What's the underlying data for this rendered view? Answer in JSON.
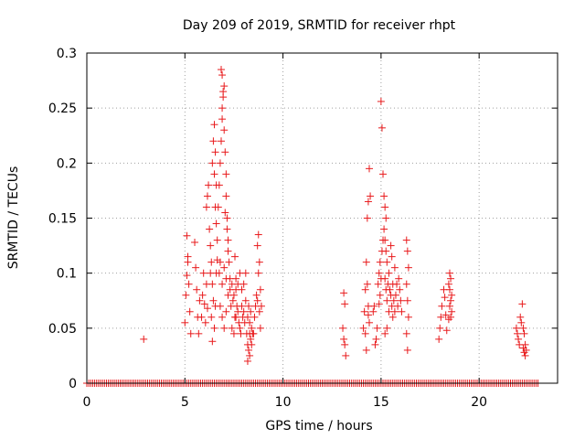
{
  "chart_data": {
    "type": "scatter",
    "title": "Day 209 of 2019, SRMTID for receiver rhpt",
    "xlabel": "GPS time / hours",
    "ylabel": "SRMTID / TECUs",
    "xlim": [
      0,
      24
    ],
    "ylim": [
      0,
      0.3
    ],
    "x_ticks": [
      0,
      5,
      10,
      15,
      20
    ],
    "x_tick_labels": [
      "0",
      "5",
      "10",
      "15",
      "20"
    ],
    "y_ticks": [
      0,
      0.05,
      0.1,
      0.15,
      0.2,
      0.25,
      0.3
    ],
    "y_tick_labels": [
      "0",
      "0.05",
      "0.1",
      "0.15",
      "0.2",
      "0.25",
      "0.3"
    ],
    "grid": true,
    "marker": "plus",
    "color": "#e8191b",
    "series": [
      {
        "name": "SRMTID",
        "zero_baseline_x_range": [
          0,
          23
        ],
        "points": [
          [
            2.9,
            0.04
          ],
          [
            5.0,
            0.055
          ],
          [
            5.05,
            0.08
          ],
          [
            5.1,
            0.134
          ],
          [
            5.15,
            0.11
          ],
          [
            5.2,
            0.09
          ],
          [
            5.25,
            0.065
          ],
          [
            5.3,
            0.045
          ],
          [
            5.15,
            0.115
          ],
          [
            5.1,
            0.098
          ],
          [
            5.5,
            0.128
          ],
          [
            5.55,
            0.105
          ],
          [
            5.6,
            0.085
          ],
          [
            5.65,
            0.06
          ],
          [
            5.7,
            0.045
          ],
          [
            5.75,
            0.075
          ],
          [
            5.85,
            0.06
          ],
          [
            5.9,
            0.08
          ],
          [
            5.95,
            0.1
          ],
          [
            6.0,
            0.072
          ],
          [
            6.05,
            0.055
          ],
          [
            6.1,
            0.09
          ],
          [
            6.15,
            0.068
          ],
          [
            6.1,
            0.16
          ],
          [
            6.15,
            0.17
          ],
          [
            6.2,
            0.18
          ],
          [
            6.25,
            0.14
          ],
          [
            6.3,
            0.125
          ],
          [
            6.35,
            0.11
          ],
          [
            6.3,
            0.1
          ],
          [
            6.4,
            0.09
          ],
          [
            6.45,
            0.075
          ],
          [
            6.4,
            0.2
          ],
          [
            6.45,
            0.22
          ],
          [
            6.5,
            0.235
          ],
          [
            6.55,
            0.21
          ],
          [
            6.5,
            0.19
          ],
          [
            6.6,
            0.18
          ],
          [
            6.55,
            0.16
          ],
          [
            6.6,
            0.145
          ],
          [
            6.65,
            0.13
          ],
          [
            6.35,
            0.06
          ],
          [
            6.4,
            0.038
          ],
          [
            6.5,
            0.05
          ],
          [
            6.55,
            0.07
          ],
          [
            6.6,
            0.1
          ],
          [
            6.65,
            0.112
          ],
          [
            6.7,
            0.16
          ],
          [
            6.75,
            0.18
          ],
          [
            6.8,
            0.2
          ],
          [
            6.85,
            0.22
          ],
          [
            6.9,
            0.24
          ],
          [
            6.95,
            0.26
          ],
          [
            6.85,
            0.285
          ],
          [
            6.9,
            0.28
          ],
          [
            7.0,
            0.27
          ],
          [
            6.95,
            0.265
          ],
          [
            6.9,
            0.25
          ],
          [
            7.0,
            0.23
          ],
          [
            7.05,
            0.21
          ],
          [
            7.1,
            0.19
          ],
          [
            7.1,
            0.17
          ],
          [
            7.15,
            0.15
          ],
          [
            7.2,
            0.13
          ],
          [
            7.2,
            0.12
          ],
          [
            7.25,
            0.11
          ],
          [
            7.3,
            0.095
          ],
          [
            7.15,
            0.14
          ],
          [
            7.05,
            0.155
          ],
          [
            6.75,
            0.1
          ],
          [
            6.8,
            0.11
          ],
          [
            6.9,
            0.09
          ],
          [
            7.0,
            0.105
          ],
          [
            7.1,
            0.095
          ],
          [
            6.8,
            0.07
          ],
          [
            6.9,
            0.06
          ],
          [
            7.0,
            0.05
          ],
          [
            7.1,
            0.065
          ],
          [
            7.2,
            0.08
          ],
          [
            7.3,
            0.085
          ],
          [
            7.35,
            0.07
          ],
          [
            7.4,
            0.09
          ],
          [
            7.45,
            0.075
          ],
          [
            7.5,
            0.08
          ],
          [
            7.55,
            0.06
          ],
          [
            7.6,
            0.085
          ],
          [
            7.65,
            0.07
          ],
          [
            7.7,
            0.065
          ],
          [
            7.75,
            0.055
          ],
          [
            7.4,
            0.05
          ],
          [
            7.5,
            0.045
          ],
          [
            7.6,
            0.06
          ],
          [
            7.8,
            0.05
          ],
          [
            7.85,
            0.045
          ],
          [
            7.9,
            0.07
          ],
          [
            7.95,
            0.06
          ],
          [
            8.0,
            0.065
          ],
          [
            8.05,
            0.055
          ],
          [
            8.1,
            0.075
          ],
          [
            7.6,
            0.095
          ],
          [
            7.7,
            0.09
          ],
          [
            7.8,
            0.1
          ],
          [
            8.0,
            0.09
          ],
          [
            8.1,
            0.1
          ],
          [
            7.9,
            0.085
          ],
          [
            7.55,
            0.115
          ],
          [
            8.15,
            0.045
          ],
          [
            8.2,
            0.035
          ],
          [
            8.25,
            0.03
          ],
          [
            8.3,
            0.025
          ],
          [
            8.35,
            0.04
          ],
          [
            8.4,
            0.05
          ],
          [
            8.2,
            0.06
          ],
          [
            8.25,
            0.07
          ],
          [
            8.3,
            0.055
          ],
          [
            8.35,
            0.065
          ],
          [
            8.4,
            0.035
          ],
          [
            8.45,
            0.045
          ],
          [
            8.2,
            0.02
          ],
          [
            8.3,
            0.045
          ],
          [
            8.5,
            0.045
          ],
          [
            8.55,
            0.06
          ],
          [
            8.6,
            0.07
          ],
          [
            8.65,
            0.08
          ],
          [
            8.7,
            0.075
          ],
          [
            8.8,
            0.065
          ],
          [
            8.85,
            0.05
          ],
          [
            8.75,
            0.1
          ],
          [
            8.7,
            0.125
          ],
          [
            8.75,
            0.135
          ],
          [
            8.8,
            0.11
          ],
          [
            8.85,
            0.085
          ],
          [
            8.9,
            0.07
          ],
          [
            13.1,
            0.082
          ],
          [
            13.15,
            0.072
          ],
          [
            13.05,
            0.05
          ],
          [
            13.1,
            0.04
          ],
          [
            13.15,
            0.035
          ],
          [
            13.2,
            0.025
          ],
          [
            14.1,
            0.05
          ],
          [
            14.15,
            0.065
          ],
          [
            14.2,
            0.085
          ],
          [
            14.25,
            0.11
          ],
          [
            14.3,
            0.15
          ],
          [
            14.35,
            0.165
          ],
          [
            14.4,
            0.195
          ],
          [
            14.45,
            0.17
          ],
          [
            14.3,
            0.09
          ],
          [
            14.35,
            0.07
          ],
          [
            14.4,
            0.055
          ],
          [
            14.2,
            0.045
          ],
          [
            14.25,
            0.03
          ],
          [
            14.35,
            0.062
          ],
          [
            14.6,
            0.065
          ],
          [
            14.65,
            0.07
          ],
          [
            14.7,
            0.035
          ],
          [
            14.75,
            0.04
          ],
          [
            14.8,
            0.05
          ],
          [
            14.85,
            0.09
          ],
          [
            14.9,
            0.1
          ],
          [
            14.95,
            0.11
          ],
          [
            15.0,
            0.095
          ],
          [
            15.05,
            0.12
          ],
          [
            14.95,
            0.08
          ],
          [
            14.9,
            0.072
          ],
          [
            15.0,
            0.256
          ],
          [
            15.05,
            0.232
          ],
          [
            15.1,
            0.19
          ],
          [
            15.15,
            0.17
          ],
          [
            15.2,
            0.16
          ],
          [
            15.25,
            0.15
          ],
          [
            15.15,
            0.14
          ],
          [
            15.2,
            0.13
          ],
          [
            15.25,
            0.12
          ],
          [
            15.3,
            0.11
          ],
          [
            15.1,
            0.13
          ],
          [
            15.2,
            0.095
          ],
          [
            15.25,
            0.085
          ],
          [
            15.3,
            0.075
          ],
          [
            15.35,
            0.09
          ],
          [
            15.4,
            0.1
          ],
          [
            15.45,
            0.085
          ],
          [
            15.5,
            0.08
          ],
          [
            15.55,
            0.07
          ],
          [
            15.6,
            0.06
          ],
          [
            15.4,
            0.065
          ],
          [
            15.3,
            0.05
          ],
          [
            15.2,
            0.045
          ],
          [
            15.6,
            0.09
          ],
          [
            15.65,
            0.075
          ],
          [
            15.7,
            0.065
          ],
          [
            15.75,
            0.08
          ],
          [
            15.8,
            0.09
          ],
          [
            15.85,
            0.07
          ],
          [
            15.9,
            0.095
          ],
          [
            15.95,
            0.085
          ],
          [
            16.0,
            0.075
          ],
          [
            16.05,
            0.065
          ],
          [
            15.55,
            0.115
          ],
          [
            15.5,
            0.125
          ],
          [
            15.7,
            0.105
          ],
          [
            16.3,
            0.13
          ],
          [
            16.35,
            0.12
          ],
          [
            16.4,
            0.105
          ],
          [
            16.3,
            0.09
          ],
          [
            16.35,
            0.075
          ],
          [
            16.4,
            0.06
          ],
          [
            16.3,
            0.045
          ],
          [
            16.35,
            0.03
          ],
          [
            17.95,
            0.04
          ],
          [
            18.0,
            0.05
          ],
          [
            18.05,
            0.06
          ],
          [
            18.1,
            0.07
          ],
          [
            18.2,
            0.085
          ],
          [
            18.25,
            0.078
          ],
          [
            18.3,
            0.062
          ],
          [
            18.35,
            0.048
          ],
          [
            18.5,
            0.1
          ],
          [
            18.55,
            0.095
          ],
          [
            18.45,
            0.09
          ],
          [
            18.5,
            0.085
          ],
          [
            18.6,
            0.08
          ],
          [
            18.55,
            0.075
          ],
          [
            18.5,
            0.07
          ],
          [
            18.6,
            0.065
          ],
          [
            18.55,
            0.06
          ],
          [
            18.45,
            0.058
          ],
          [
            21.9,
            0.05
          ],
          [
            21.95,
            0.045
          ],
          [
            22.0,
            0.04
          ],
          [
            22.05,
            0.035
          ],
          [
            22.1,
            0.06
          ],
          [
            22.15,
            0.055
          ],
          [
            22.2,
            0.072
          ],
          [
            22.25,
            0.05
          ],
          [
            22.3,
            0.045
          ],
          [
            22.35,
            0.035
          ],
          [
            22.4,
            0.03
          ],
          [
            22.3,
            0.028
          ],
          [
            22.25,
            0.032
          ],
          [
            22.35,
            0.025
          ]
        ]
      }
    ]
  }
}
